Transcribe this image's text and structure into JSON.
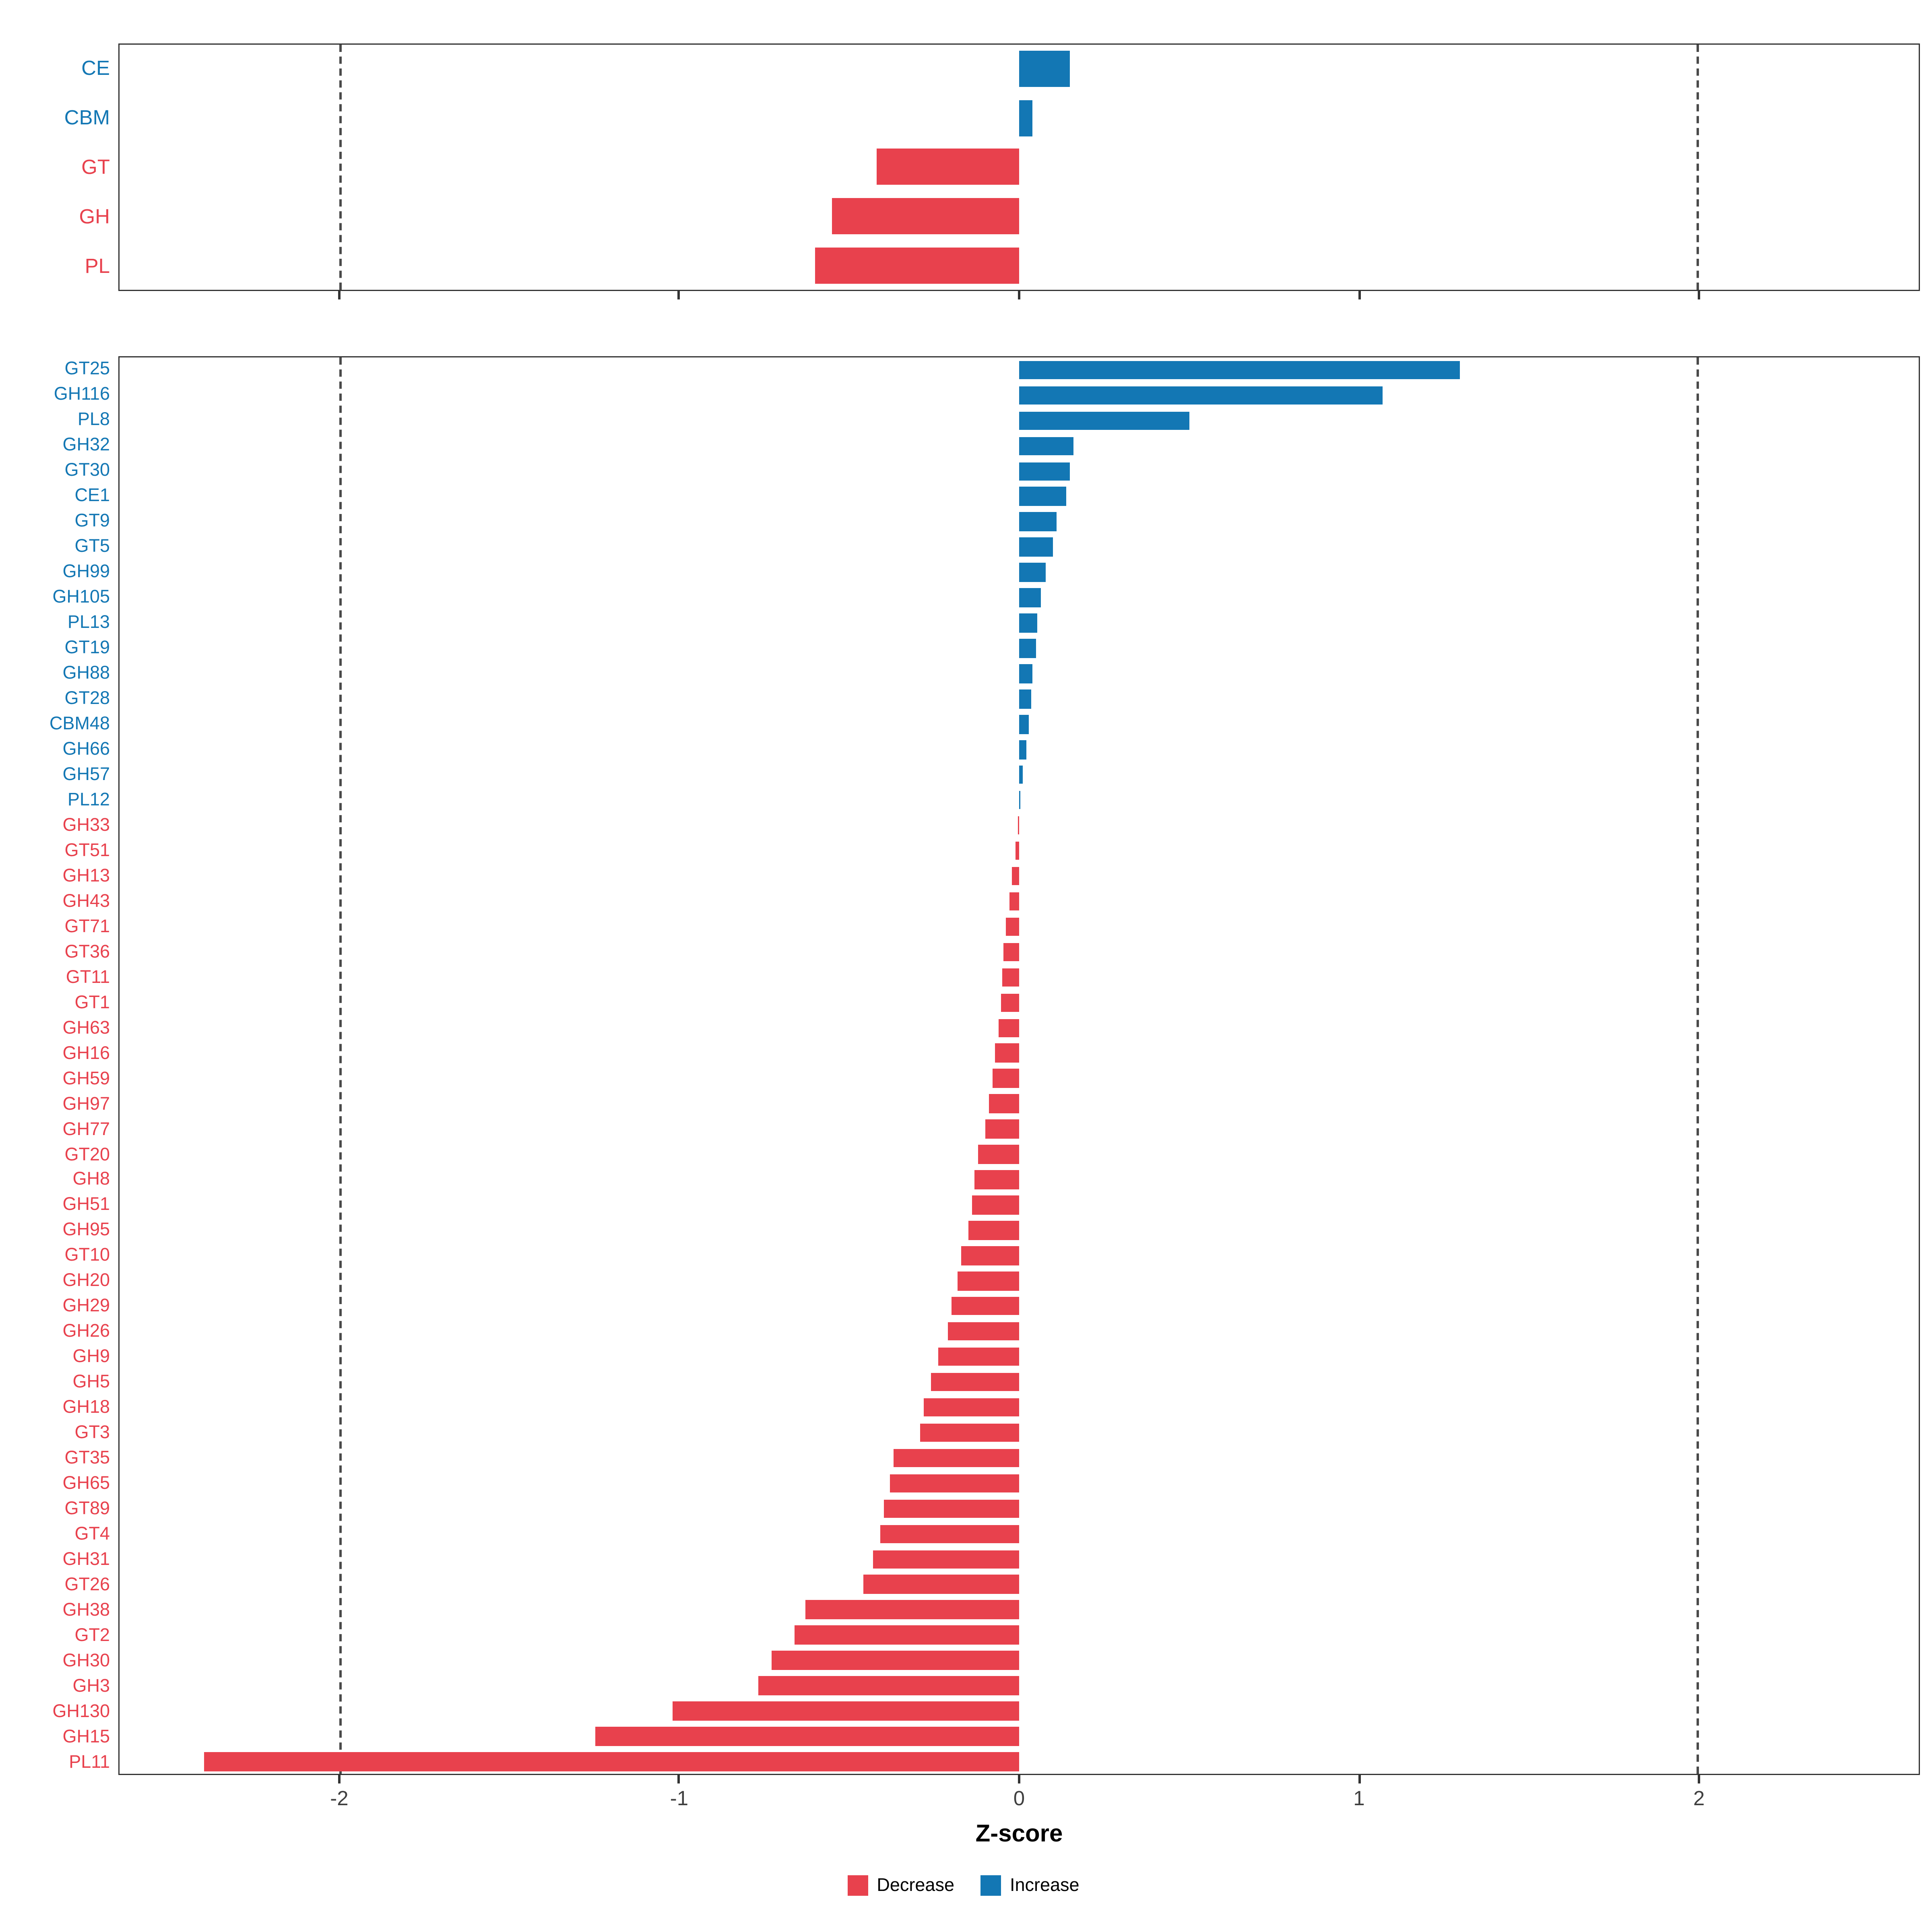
{
  "chart_data": [
    {
      "type": "bar",
      "orientation": "horizontal",
      "panel": "top-summary",
      "categories": [
        "CE",
        "CBM",
        "GT",
        "GH",
        "PL"
      ],
      "values": [
        0.15,
        0.04,
        -0.42,
        -0.55,
        -0.6
      ],
      "xlim": [
        -2.65,
        2.65
      ],
      "xticks": [
        -2,
        -1,
        0,
        1,
        2
      ],
      "dashed_lines": [
        -2,
        2
      ],
      "grid": false,
      "xlabel": ""
    },
    {
      "type": "bar",
      "orientation": "horizontal",
      "panel": "bottom-families",
      "categories": [
        "GT25",
        "GH116",
        "PL8",
        "GH32",
        "GT30",
        "CE1",
        "GT9",
        "GT5",
        "GH99",
        "GH105",
        "PL13",
        "GT19",
        "GH88",
        "GT28",
        "CBM48",
        "GH66",
        "GH57",
        "PL12",
        "GH33",
        "GT51",
        "GH13",
        "GH43",
        "GT71",
        "GT36",
        "GT11",
        "GT1",
        "GH63",
        "GH16",
        "GH59",
        "GH97",
        "GH77",
        "GT20",
        "GH8",
        "GH51",
        "GH95",
        "GT10",
        "GH20",
        "GH29",
        "GH26",
        "GH9",
        "GH5",
        "GH18",
        "GT3",
        "GT35",
        "GH65",
        "GT89",
        "GT4",
        "GH31",
        "GT26",
        "GH38",
        "GT2",
        "GH30",
        "GH3",
        "GH130",
        "GH15",
        "PL11"
      ],
      "values": [
        1.3,
        1.07,
        0.5,
        0.16,
        0.15,
        0.14,
        0.11,
        0.1,
        0.08,
        0.065,
        0.055,
        0.05,
        0.04,
        0.035,
        0.03,
        0.02,
        0.01,
        0.005,
        -0.005,
        -0.01,
        -0.02,
        -0.03,
        -0.04,
        -0.045,
        -0.05,
        -0.055,
        -0.06,
        -0.07,
        -0.08,
        -0.09,
        -0.1,
        -0.12,
        -0.13,
        -0.14,
        -0.15,
        -0.17,
        -0.18,
        -0.2,
        -0.21,
        -0.24,
        -0.26,
        -0.28,
        -0.29,
        -0.37,
        -0.38,
        -0.4,
        -0.41,
        -0.43,
        -0.46,
        -0.63,
        -0.66,
        -0.73,
        -0.77,
        -1.02,
        -1.25,
        -2.4
      ],
      "xlim": [
        -2.65,
        2.65
      ],
      "xticks": [
        -2,
        -1,
        0,
        1,
        2
      ],
      "dashed_lines": [
        -2,
        2
      ],
      "grid": false,
      "xlabel": "Z-score"
    }
  ],
  "colors": {
    "decrease": "#E8414D",
    "increase": "#1377B4",
    "panel_border": "#333333",
    "dashed_line": "#4a4a4a"
  },
  "legend": {
    "items": [
      {
        "label": "Decrease",
        "color": "#E8414D"
      },
      {
        "label": "Increase",
        "color": "#1377B4"
      }
    ]
  }
}
